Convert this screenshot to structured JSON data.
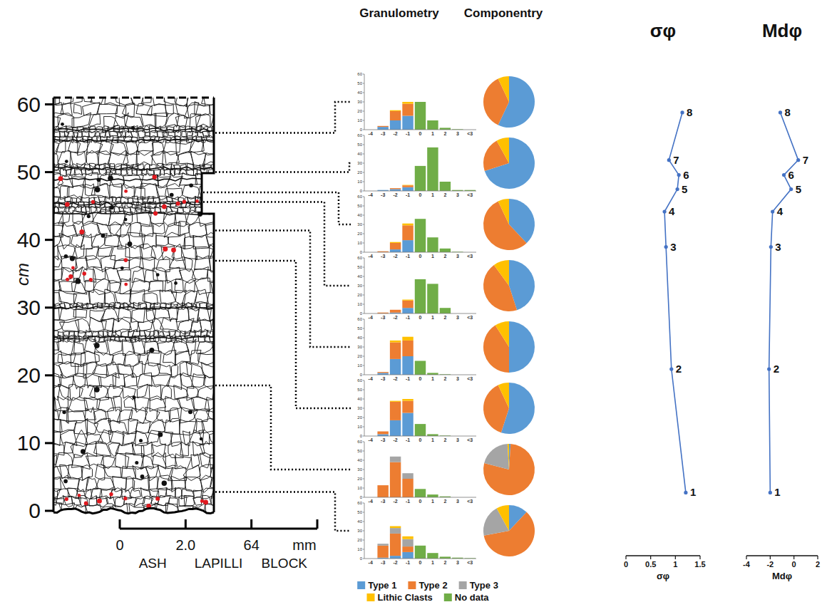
{
  "chart_data": [
    {
      "type": "column",
      "ylabel": "cm",
      "ylim": [
        0,
        61
      ],
      "yticks": [
        0,
        10,
        20,
        30,
        40,
        50,
        60
      ],
      "xlabel": "mm",
      "categories": [
        "0",
        "2.0",
        "64",
        null
      ],
      "classes": [
        "ASH",
        "LAPILLI",
        "BLOCK"
      ],
      "sample_heights": [
        55.8,
        50.0,
        47.0,
        45.6,
        41.4,
        36.9,
        18.5,
        2.8
      ]
    },
    {
      "type": "bar",
      "stacked": true,
      "title": "Granulometry",
      "legend": "bottom",
      "categories": [
        "-4",
        "-3",
        "-2",
        "-1",
        "0",
        "1",
        "2",
        "3",
        "<3"
      ],
      "ylim": [
        0,
        60
      ],
      "yticks": [
        0,
        10,
        20,
        30,
        40,
        50,
        60
      ],
      "series": [
        {
          "name": "Type 1",
          "color": "#5b9bd5",
          "values": [
            [
              0,
              3,
              10,
              15,
              0,
              0,
              0,
              0,
              0
            ],
            [
              0,
              1,
              2,
              4,
              0,
              0,
              0,
              0,
              0
            ],
            [
              0,
              0,
              3,
              13,
              0,
              0,
              0,
              0,
              0
            ],
            [
              0,
              0,
              1,
              6,
              0,
              0,
              0,
              0,
              0
            ],
            [
              0,
              2,
              17,
              20,
              0,
              0,
              0,
              0,
              0
            ],
            [
              0,
              2,
              17,
              25,
              0,
              0,
              0,
              0,
              0
            ],
            [
              0,
              0,
              0,
              0,
              0,
              0,
              0,
              0,
              0
            ],
            [
              0,
              1,
              3,
              7,
              0,
              0,
              0,
              0,
              0
            ]
          ]
        },
        {
          "name": "Type 2",
          "color": "#ed7d31",
          "values": [
            [
              0,
              1,
              10,
              13,
              0,
              0,
              0,
              0,
              0
            ],
            [
              0,
              0,
              1,
              2,
              0,
              0,
              0,
              0,
              0
            ],
            [
              0,
              1,
              7,
              16,
              0,
              0,
              0,
              0,
              0
            ],
            [
              0,
              1,
              3,
              8,
              0,
              0,
              0,
              0,
              0
            ],
            [
              0,
              1,
              18,
              17,
              0,
              0,
              0,
              0,
              0
            ],
            [
              0,
              3,
              20,
              13,
              0,
              0,
              0,
              0,
              0
            ],
            [
              0,
              13,
              38,
              20,
              0,
              0,
              0,
              0,
              0
            ],
            [
              0,
              13,
              24,
              6,
              0,
              0,
              0,
              0,
              0
            ]
          ]
        },
        {
          "name": "Type 3",
          "color": "#a5a5a5",
          "values": [
            [
              0,
              0,
              0,
              0,
              0,
              0,
              0,
              0,
              0
            ],
            [
              0,
              0,
              0,
              0,
              0,
              0,
              0,
              0,
              0
            ],
            [
              0,
              0,
              0,
              0,
              0,
              0,
              0,
              0,
              0
            ],
            [
              0,
              0,
              0,
              0,
              0,
              0,
              0,
              0,
              0
            ],
            [
              0,
              0,
              0,
              0,
              0,
              0,
              0,
              0,
              0
            ],
            [
              0,
              0,
              0,
              0,
              0,
              0,
              0,
              0,
              0
            ],
            [
              0,
              0,
              6,
              6,
              0,
              0,
              0,
              0,
              0
            ],
            [
              0,
              2,
              6,
              8,
              0,
              0,
              0,
              0,
              0
            ]
          ]
        },
        {
          "name": "Lithic Clasts",
          "color": "#ffc000",
          "values": [
            [
              0,
              0,
              1,
              2,
              0,
              0,
              0,
              0,
              0
            ],
            [
              0,
              0,
              0,
              0.5,
              0,
              0,
              0,
              0,
              0
            ],
            [
              0,
              0,
              1,
              2,
              0,
              0,
              0,
              0,
              0
            ],
            [
              0,
              0,
              0,
              1,
              0,
              0,
              0,
              0,
              0
            ],
            [
              0,
              0,
              2,
              4,
              0,
              0,
              0,
              0,
              0
            ],
            [
              0,
              0,
              1,
              2,
              0,
              0,
              0,
              0,
              0
            ],
            [
              0,
              0,
              0,
              0,
              0,
              0,
              0,
              0,
              0
            ],
            [
              0,
              0,
              2,
              3,
              0,
              0,
              0,
              0,
              0
            ]
          ]
        },
        {
          "name": "No data",
          "color": "#70ad47",
          "values": [
            [
              0,
              0,
              0,
              0,
              30,
              10,
              2,
              0.5,
              0
            ],
            [
              0,
              0,
              0,
              0,
              27,
              47,
              10,
              1,
              1
            ],
            [
              0,
              0,
              0,
              0,
              36,
              16,
              4,
              0.5,
              0
            ],
            [
              0,
              0,
              0,
              0,
              37,
              32,
              6,
              0,
              0
            ],
            [
              0,
              0,
              0,
              0,
              15,
              2,
              0.5,
              0,
              0
            ],
            [
              0,
              0,
              0,
              0,
              13,
              2,
              0.5,
              0,
              0
            ],
            [
              0,
              0,
              0,
              0,
              9,
              3,
              1,
              0,
              0
            ],
            [
              0,
              0,
              0,
              0,
              14,
              6,
              2,
              1,
              0.5
            ]
          ]
        }
      ]
    },
    {
      "type": "pie",
      "title": "Componentry",
      "categories": [
        "Type 1",
        "Type 2",
        "Type 3",
        "Lithic Clasts"
      ],
      "colors": [
        "#5b9bd5",
        "#ed7d31",
        "#a5a5a5",
        "#ffc000"
      ],
      "values": [
        [
          57,
          36,
          0,
          7
        ],
        [
          70,
          22,
          0,
          8
        ],
        [
          38,
          55,
          0,
          7
        ],
        [
          45,
          45,
          0,
          10
        ],
        [
          50,
          41,
          0,
          9
        ],
        [
          55,
          38,
          0,
          7
        ],
        [
          1,
          78,
          20,
          1
        ],
        [
          12,
          60,
          20,
          8
        ]
      ]
    },
    {
      "type": "line",
      "orientation": "horizontal",
      "title": "σφ",
      "xlabel": "σφ",
      "xlim": [
        0,
        1.5
      ],
      "xticks": [
        0,
        0.5,
        1,
        1.5
      ],
      "ylim": [
        -6.5,
        61
      ],
      "heights": [
        2.8,
        21,
        39,
        44.2,
        47.5,
        49.6,
        51.8,
        58.8
      ],
      "values": [
        1.21,
        0.92,
        0.81,
        0.78,
        1.04,
        1.07,
        0.87,
        1.14
      ],
      "point_labels": [
        "1",
        "2",
        "3",
        "4",
        "5",
        "6",
        "7",
        "8"
      ],
      "color": "#4472c4",
      "marker": "circle"
    },
    {
      "type": "line",
      "orientation": "horizontal",
      "title": "Mdφ",
      "xlabel": "Mdφ",
      "xlim": [
        -4,
        2
      ],
      "xticks": [
        -4,
        -2,
        0,
        2
      ],
      "ylim": [
        -6.5,
        61
      ],
      "heights": [
        2.8,
        21,
        39,
        44.2,
        47.5,
        49.6,
        51.8,
        58.8
      ],
      "values": [
        -2.0,
        -2.1,
        -1.94,
        -1.8,
        -0.24,
        -0.85,
        0.36,
        -1.15
      ],
      "point_labels": [
        "1",
        "2",
        "3",
        "4",
        "5",
        "6",
        "7",
        "8"
      ],
      "color": "#4472c4",
      "marker": "circle"
    }
  ]
}
